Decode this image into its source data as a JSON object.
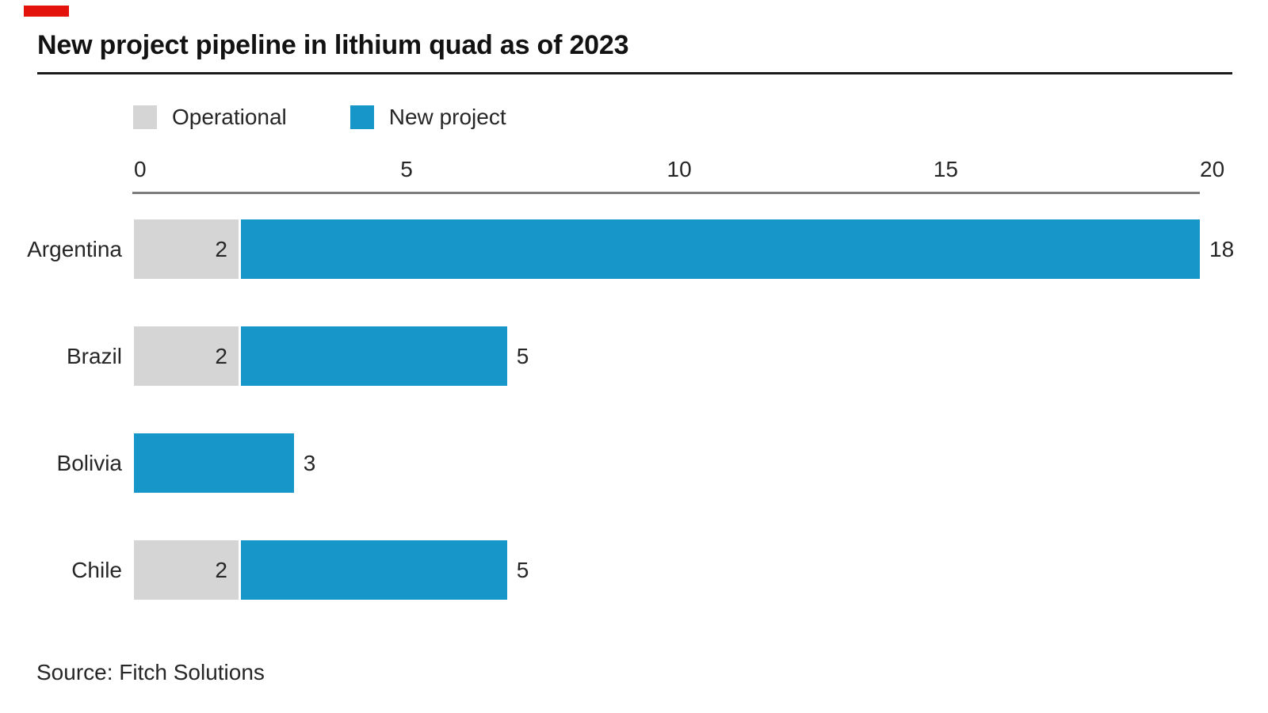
{
  "title": "New project pipeline in lithium quad as of 2023",
  "source": "Source: Fitch Solutions",
  "accent": {
    "red_tab": "#E3120B"
  },
  "colors": {
    "operational": "#D5D5D5",
    "new_project": "#1796C9",
    "axis_line": "#7D7D7D",
    "title_rule": "#1A1A1A",
    "text": "#262626"
  },
  "legend": [
    {
      "label": "Operational",
      "color": "#D5D5D5"
    },
    {
      "label": "New project",
      "color": "#1796C9"
    }
  ],
  "chart_data": {
    "type": "bar",
    "orientation": "horizontal",
    "stacked": true,
    "title": "New project pipeline in lithium quad as of 2023",
    "categories": [
      "Argentina",
      "Brazil",
      "Bolivia",
      "Chile"
    ],
    "series": [
      {
        "name": "Operational",
        "color": "#D5D5D5",
        "values": [
          2,
          2,
          0,
          2
        ]
      },
      {
        "name": "New project",
        "color": "#1796C9",
        "values": [
          18,
          5,
          3,
          5
        ]
      }
    ],
    "segment_labels": {
      "operational": [
        "2",
        "2",
        null,
        "2"
      ],
      "new_project": [
        "18",
        "5",
        "3",
        "5"
      ]
    },
    "xlim": [
      0,
      20
    ],
    "xticks": [
      "0",
      "5",
      "10",
      "15",
      "20"
    ],
    "grid": false,
    "legend_position": "top-left",
    "xlabel": "",
    "ylabel": ""
  }
}
